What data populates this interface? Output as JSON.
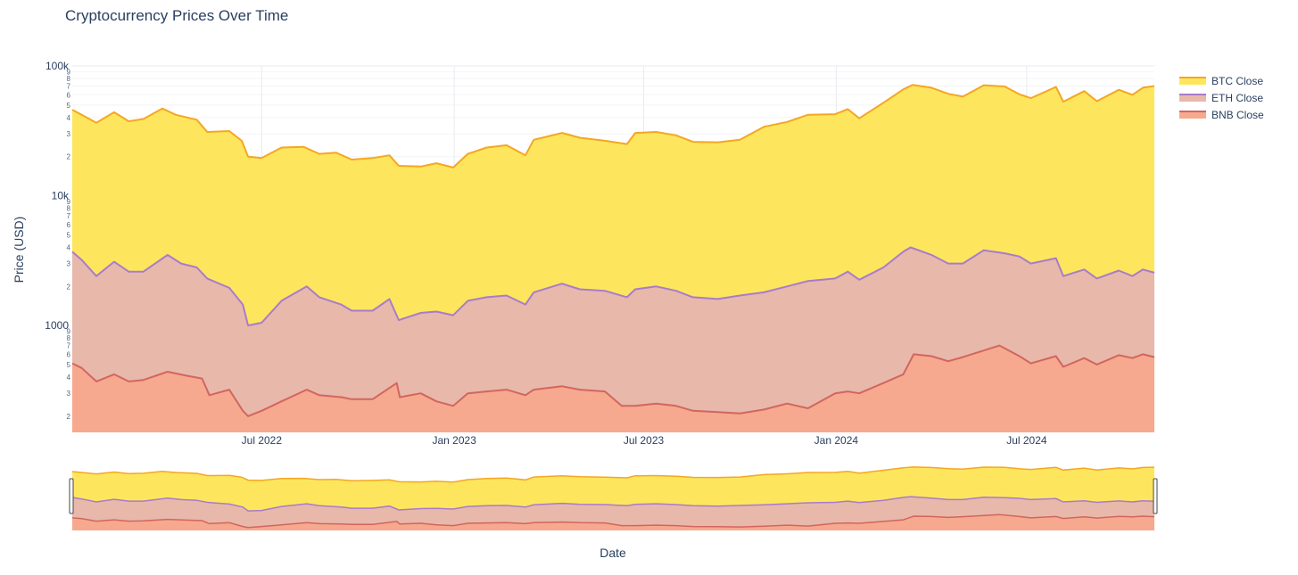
{
  "chart_data": {
    "type": "area",
    "title": "Cryptocurrency Prices Over Time",
    "xlabel": "Date",
    "ylabel": "Price (USD)",
    "yscale": "log",
    "ylim": [
      150,
      100000
    ],
    "y_major_ticks": [
      {
        "value": 1000,
        "label": "1000"
      },
      {
        "value": 10000,
        "label": "10k"
      },
      {
        "value": 100000,
        "label": "100k"
      }
    ],
    "y_minor_digits": [
      "2",
      "3",
      "4",
      "5",
      "6",
      "7",
      "8",
      "9"
    ],
    "xlim": [
      "2022-01-01",
      "2024-10-31"
    ],
    "x_ticks": [
      {
        "date": "2022-07-01",
        "label": "Jul 2022"
      },
      {
        "date": "2023-01-01",
        "label": "Jan 2023"
      },
      {
        "date": "2023-07-01",
        "label": "Jul 2023"
      },
      {
        "date": "2024-01-01",
        "label": "Jan 2024"
      },
      {
        "date": "2024-07-01",
        "label": "Jul 2024"
      }
    ],
    "grid": true,
    "legend_position": "top-right",
    "rangeslider": true,
    "series": [
      {
        "name": "BTC Close",
        "line_color": "#f5a623",
        "fill_color": "#fde65d",
        "points": [
          [
            "2022-01-01",
            46000
          ],
          [
            "2022-01-10",
            42000
          ],
          [
            "2022-01-24",
            36500
          ],
          [
            "2022-02-10",
            44000
          ],
          [
            "2022-02-24",
            37500
          ],
          [
            "2022-03-10",
            39000
          ],
          [
            "2022-03-28",
            47000
          ],
          [
            "2022-04-10",
            42000
          ],
          [
            "2022-04-30",
            38500
          ],
          [
            "2022-05-10",
            31000
          ],
          [
            "2022-05-31",
            31500
          ],
          [
            "2022-06-12",
            26500
          ],
          [
            "2022-06-18",
            20000
          ],
          [
            "2022-07-01",
            19500
          ],
          [
            "2022-07-20",
            23500
          ],
          [
            "2022-08-10",
            23800
          ],
          [
            "2022-08-25",
            21000
          ],
          [
            "2022-09-10",
            21500
          ],
          [
            "2022-09-25",
            19000
          ],
          [
            "2022-10-15",
            19500
          ],
          [
            "2022-10-31",
            20500
          ],
          [
            "2022-11-09",
            17000
          ],
          [
            "2022-11-30",
            16800
          ],
          [
            "2022-12-15",
            17800
          ],
          [
            "2022-12-31",
            16500
          ],
          [
            "2023-01-14",
            21000
          ],
          [
            "2023-02-01",
            23500
          ],
          [
            "2023-02-20",
            24500
          ],
          [
            "2023-03-10",
            20500
          ],
          [
            "2023-03-18",
            27000
          ],
          [
            "2023-04-14",
            30500
          ],
          [
            "2023-05-01",
            28000
          ],
          [
            "2023-05-25",
            26500
          ],
          [
            "2023-06-15",
            25000
          ],
          [
            "2023-06-23",
            30500
          ],
          [
            "2023-07-13",
            31000
          ],
          [
            "2023-08-01",
            29200
          ],
          [
            "2023-08-17",
            26000
          ],
          [
            "2023-09-10",
            25800
          ],
          [
            "2023-10-01",
            27000
          ],
          [
            "2023-10-24",
            34000
          ],
          [
            "2023-11-15",
            37000
          ],
          [
            "2023-12-05",
            42000
          ],
          [
            "2023-12-31",
            42500
          ],
          [
            "2024-01-12",
            46500
          ],
          [
            "2024-01-23",
            39500
          ],
          [
            "2024-02-15",
            52000
          ],
          [
            "2024-03-05",
            66000
          ],
          [
            "2024-03-14",
            71500
          ],
          [
            "2024-04-01",
            68000
          ],
          [
            "2024-04-17",
            61000
          ],
          [
            "2024-05-01",
            58000
          ],
          [
            "2024-05-21",
            71000
          ],
          [
            "2024-06-10",
            69500
          ],
          [
            "2024-06-24",
            60500
          ],
          [
            "2024-07-05",
            56500
          ],
          [
            "2024-07-29",
            69000
          ],
          [
            "2024-08-05",
            53000
          ],
          [
            "2024-08-25",
            64000
          ],
          [
            "2024-09-06",
            53500
          ],
          [
            "2024-09-27",
            65500
          ],
          [
            "2024-10-10",
            60000
          ],
          [
            "2024-10-20",
            68000
          ],
          [
            "2024-10-31",
            70000
          ]
        ]
      },
      {
        "name": "ETH Close",
        "line_color": "#a97cc9",
        "fill_color": "#e8b8ab",
        "points": [
          [
            "2022-01-01",
            3700
          ],
          [
            "2022-01-10",
            3200
          ],
          [
            "2022-01-24",
            2400
          ],
          [
            "2022-02-10",
            3100
          ],
          [
            "2022-02-24",
            2600
          ],
          [
            "2022-03-10",
            2600
          ],
          [
            "2022-04-02",
            3500
          ],
          [
            "2022-04-15",
            3000
          ],
          [
            "2022-04-30",
            2800
          ],
          [
            "2022-05-10",
            2300
          ],
          [
            "2022-05-31",
            1950
          ],
          [
            "2022-06-13",
            1450
          ],
          [
            "2022-06-18",
            1000
          ],
          [
            "2022-07-01",
            1050
          ],
          [
            "2022-07-20",
            1550
          ],
          [
            "2022-08-13",
            2000
          ],
          [
            "2022-08-25",
            1650
          ],
          [
            "2022-09-15",
            1450
          ],
          [
            "2022-09-25",
            1300
          ],
          [
            "2022-10-15",
            1300
          ],
          [
            "2022-10-31",
            1600
          ],
          [
            "2022-11-09",
            1100
          ],
          [
            "2022-11-30",
            1250
          ],
          [
            "2022-12-15",
            1280
          ],
          [
            "2022-12-31",
            1200
          ],
          [
            "2023-01-14",
            1550
          ],
          [
            "2023-02-01",
            1650
          ],
          [
            "2023-02-20",
            1700
          ],
          [
            "2023-03-10",
            1450
          ],
          [
            "2023-03-18",
            1800
          ],
          [
            "2023-04-14",
            2100
          ],
          [
            "2023-05-01",
            1900
          ],
          [
            "2023-05-25",
            1850
          ],
          [
            "2023-06-15",
            1650
          ],
          [
            "2023-06-23",
            1900
          ],
          [
            "2023-07-13",
            2000
          ],
          [
            "2023-08-01",
            1850
          ],
          [
            "2023-08-17",
            1650
          ],
          [
            "2023-09-10",
            1600
          ],
          [
            "2023-10-01",
            1700
          ],
          [
            "2023-10-24",
            1800
          ],
          [
            "2023-11-15",
            2000
          ],
          [
            "2023-12-05",
            2200
          ],
          [
            "2023-12-31",
            2300
          ],
          [
            "2024-01-12",
            2600
          ],
          [
            "2024-01-23",
            2250
          ],
          [
            "2024-02-15",
            2800
          ],
          [
            "2024-03-05",
            3700
          ],
          [
            "2024-03-12",
            4000
          ],
          [
            "2024-04-01",
            3500
          ],
          [
            "2024-04-17",
            3000
          ],
          [
            "2024-05-01",
            3000
          ],
          [
            "2024-05-21",
            3800
          ],
          [
            "2024-06-10",
            3600
          ],
          [
            "2024-06-24",
            3400
          ],
          [
            "2024-07-05",
            3000
          ],
          [
            "2024-07-29",
            3300
          ],
          [
            "2024-08-05",
            2400
          ],
          [
            "2024-08-25",
            2700
          ],
          [
            "2024-09-06",
            2300
          ],
          [
            "2024-09-27",
            2650
          ],
          [
            "2024-10-10",
            2400
          ],
          [
            "2024-10-20",
            2700
          ],
          [
            "2024-10-31",
            2550
          ]
        ]
      },
      {
        "name": "BNB Close",
        "line_color": "#d2665f",
        "fill_color": "#f6a98e",
        "points": [
          [
            "2022-01-01",
            510
          ],
          [
            "2022-01-10",
            470
          ],
          [
            "2022-01-24",
            370
          ],
          [
            "2022-02-10",
            420
          ],
          [
            "2022-02-24",
            370
          ],
          [
            "2022-03-10",
            380
          ],
          [
            "2022-04-02",
            440
          ],
          [
            "2022-04-20",
            410
          ],
          [
            "2022-05-05",
            390
          ],
          [
            "2022-05-12",
            290
          ],
          [
            "2022-05-31",
            320
          ],
          [
            "2022-06-13",
            220
          ],
          [
            "2022-06-18",
            200
          ],
          [
            "2022-07-01",
            220
          ],
          [
            "2022-07-20",
            260
          ],
          [
            "2022-08-13",
            320
          ],
          [
            "2022-08-25",
            290
          ],
          [
            "2022-09-15",
            280
          ],
          [
            "2022-09-25",
            270
          ],
          [
            "2022-10-15",
            270
          ],
          [
            "2022-11-07",
            360
          ],
          [
            "2022-11-10",
            280
          ],
          [
            "2022-11-30",
            300
          ],
          [
            "2022-12-15",
            260
          ],
          [
            "2022-12-31",
            240
          ],
          [
            "2023-01-14",
            300
          ],
          [
            "2023-02-01",
            310
          ],
          [
            "2023-02-20",
            320
          ],
          [
            "2023-03-10",
            290
          ],
          [
            "2023-03-18",
            320
          ],
          [
            "2023-04-14",
            340
          ],
          [
            "2023-05-01",
            320
          ],
          [
            "2023-05-25",
            310
          ],
          [
            "2023-06-10",
            240
          ],
          [
            "2023-06-23",
            240
          ],
          [
            "2023-07-13",
            250
          ],
          [
            "2023-08-01",
            240
          ],
          [
            "2023-08-17",
            220
          ],
          [
            "2023-09-10",
            215
          ],
          [
            "2023-10-01",
            210
          ],
          [
            "2023-10-24",
            225
          ],
          [
            "2023-11-15",
            250
          ],
          [
            "2023-12-05",
            230
          ],
          [
            "2023-12-31",
            300
          ],
          [
            "2024-01-12",
            310
          ],
          [
            "2024-01-23",
            300
          ],
          [
            "2024-02-15",
            360
          ],
          [
            "2024-03-05",
            420
          ],
          [
            "2024-03-15",
            600
          ],
          [
            "2024-04-01",
            580
          ],
          [
            "2024-04-17",
            530
          ],
          [
            "2024-05-01",
            570
          ],
          [
            "2024-06-05",
            700
          ],
          [
            "2024-06-24",
            580
          ],
          [
            "2024-07-05",
            510
          ],
          [
            "2024-07-29",
            580
          ],
          [
            "2024-08-05",
            480
          ],
          [
            "2024-08-25",
            560
          ],
          [
            "2024-09-06",
            500
          ],
          [
            "2024-09-27",
            590
          ],
          [
            "2024-10-10",
            560
          ],
          [
            "2024-10-20",
            600
          ],
          [
            "2024-10-31",
            570
          ]
        ]
      }
    ]
  }
}
